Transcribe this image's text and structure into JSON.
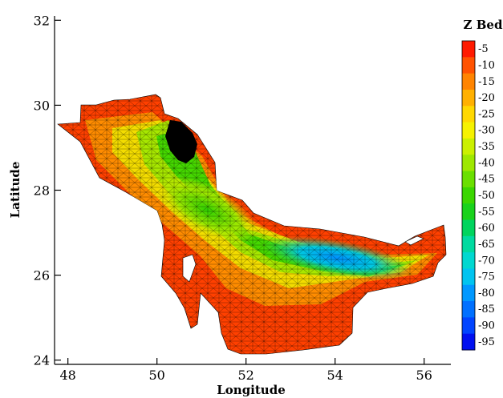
{
  "chart_data": {
    "type": "heatmap",
    "title": "",
    "xlabel": "Longitude",
    "ylabel": "Latitude",
    "xlim": [
      47.7,
      56.6
    ],
    "ylim": [
      23.9,
      32.1
    ],
    "x_ticks": [
      "48",
      "50",
      "52",
      "54",
      "56"
    ],
    "x_tick_values": [
      48,
      50,
      52,
      54,
      56
    ],
    "y_ticks": [
      "24",
      "26",
      "28",
      "30",
      "32"
    ],
    "y_tick_values": [
      24,
      26,
      28,
      30,
      32
    ],
    "legend": {
      "title": "Z Bed",
      "placement": "right",
      "levels": [
        "-5",
        "-10",
        "-15",
        "-20",
        "-25",
        "-30",
        "-35",
        "-40",
        "-45",
        "-50",
        "-55",
        "-60",
        "-65",
        "-70",
        "-75",
        "-80",
        "-85",
        "-90",
        "-95"
      ],
      "colors": [
        "#ff1a00",
        "#ff5200",
        "#ff8400",
        "#ffb000",
        "#ffd800",
        "#f6f200",
        "#cbf000",
        "#9ee800",
        "#6adf00",
        "#3bd600",
        "#19d21c",
        "#00d45e",
        "#00daa0",
        "#00d8d0",
        "#00c4f0",
        "#0098ff",
        "#0070ff",
        "#0044ff",
        "#0010f0"
      ]
    },
    "mesh": "triangular",
    "colormap_variable": "Z Bed"
  }
}
